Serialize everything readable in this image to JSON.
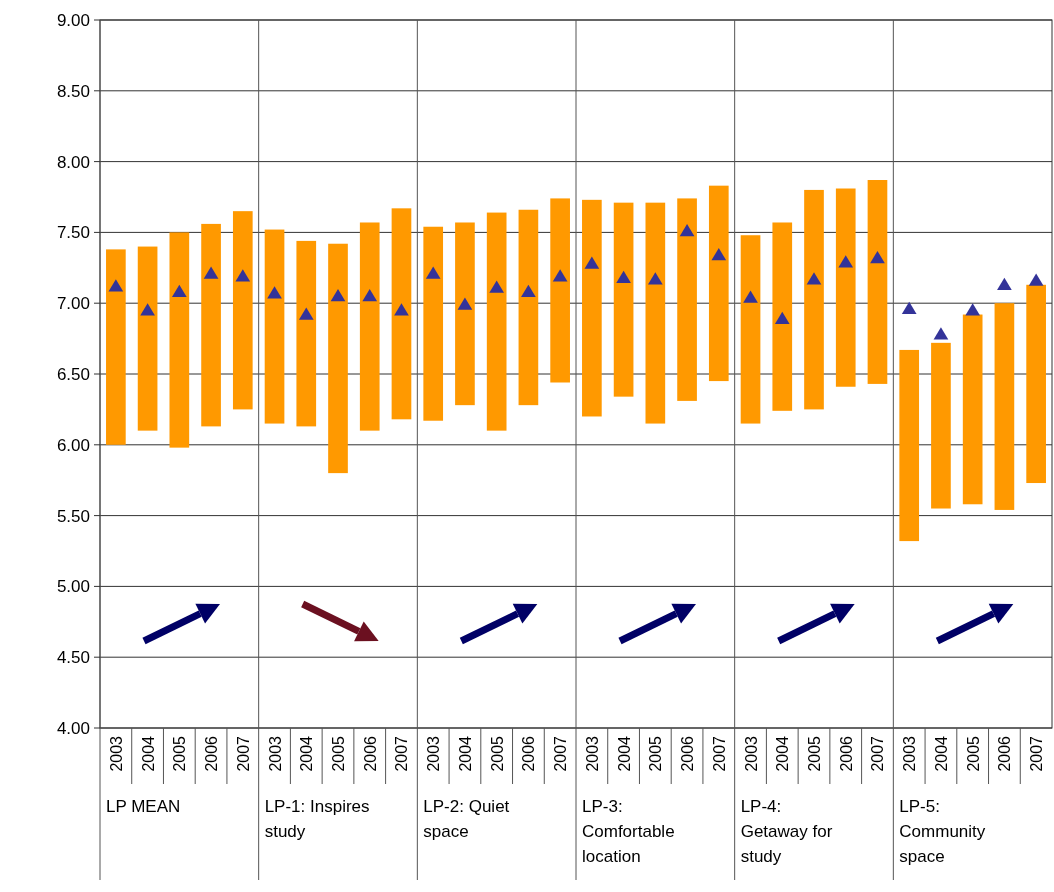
{
  "chart_data": {
    "type": "bar",
    "categories": [
      "2003",
      "2004",
      "2005",
      "2006",
      "2007",
      "2003",
      "2004",
      "2005",
      "2006",
      "2007",
      "2003",
      "2004",
      "2005",
      "2006",
      "2007",
      "2003",
      "2004",
      "2005",
      "2006",
      "2007",
      "2003",
      "2004",
      "2005",
      "2006",
      "2007",
      "2003",
      "2004",
      "2005",
      "2006",
      "2007"
    ],
    "annotations": [
      "LP MEAN",
      "LP-1: Inspires study",
      "LP-2: Quiet space",
      "LP-3: Comfortable location",
      "LP-4: Getaway for study",
      "LP-5: Community space"
    ],
    "series": [
      {
        "type": "bar",
        "color": "#ff9900",
        "base": [
          6.0,
          6.1,
          5.98,
          6.13,
          6.25,
          6.15,
          6.13,
          5.8,
          6.1,
          6.18,
          6.17,
          6.28,
          6.1,
          6.28,
          6.44,
          6.2,
          6.34,
          6.15,
          6.31,
          6.45,
          6.15,
          6.24,
          6.25,
          6.41,
          6.43,
          5.32,
          5.55,
          5.58,
          5.54,
          5.73
        ],
        "values": [
          1.38,
          1.3,
          1.52,
          1.43,
          1.4,
          1.37,
          1.31,
          1.62,
          1.47,
          1.49,
          1.37,
          1.29,
          1.54,
          1.38,
          1.3,
          1.53,
          1.37,
          1.56,
          1.43,
          1.38,
          1.33,
          1.33,
          1.55,
          1.4,
          1.44,
          1.35,
          1.17,
          1.34,
          1.46,
          1.4
        ]
      },
      {
        "type": "scatter",
        "color": "#333399",
        "marker": "triangle",
        "values": [
          7.12,
          6.95,
          7.08,
          7.21,
          7.19,
          7.07,
          6.92,
          7.05,
          7.05,
          6.95,
          7.21,
          6.99,
          7.11,
          7.08,
          7.19,
          7.28,
          7.18,
          7.17,
          7.51,
          7.34,
          7.04,
          6.89,
          7.17,
          7.29,
          7.32,
          6.96,
          6.78,
          6.95,
          7.13,
          7.16
        ]
      }
    ],
    "ylim": [
      4,
      9
    ],
    "yticks": [
      {
        "value": 4,
        "label": "4.00"
      },
      {
        "value": 4.5,
        "label": "4.50"
      },
      {
        "value": 5,
        "label": "5.00"
      },
      {
        "value": 5.5,
        "label": "5.50"
      },
      {
        "value": 6,
        "label": "6.00"
      },
      {
        "value": 6.5,
        "label": "6.50"
      },
      {
        "value": 7,
        "label": "7.00"
      },
      {
        "value": 7.5,
        "label": "7.50"
      },
      {
        "value": 8,
        "label": "8.00"
      },
      {
        "value": 8.5,
        "label": "8.50"
      },
      {
        "value": 9,
        "label": "9.00"
      }
    ],
    "grid": "y"
  }
}
